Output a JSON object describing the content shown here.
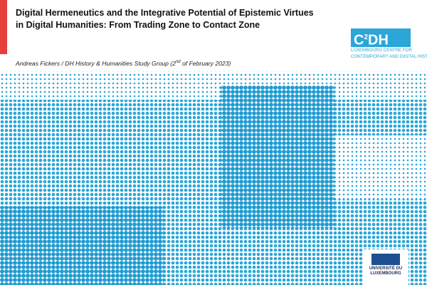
{
  "header": {
    "title_lines": [
      "Digital Hermeneutics and the Integrative Potential of Epistemic Virtues",
      "in Digital Humanities: From Trading Zone to Contact Zone"
    ],
    "subtitle": {
      "before": "Andreas Fickers / DH History & Humanities Study Group (2",
      "superscript": "nd",
      "after": " of February 2023)"
    }
  },
  "logo": {
    "c": "C",
    "superscript": "2",
    "dh": "DH",
    "caption": [
      "LUXEMBOURG CENTRE FOR",
      "CONTEMPORARY AND DIGITAL HISTO"
    ]
  },
  "university": [
    "UNIVERSITÉ DU",
    "LUXEMBOURG"
  ]
}
